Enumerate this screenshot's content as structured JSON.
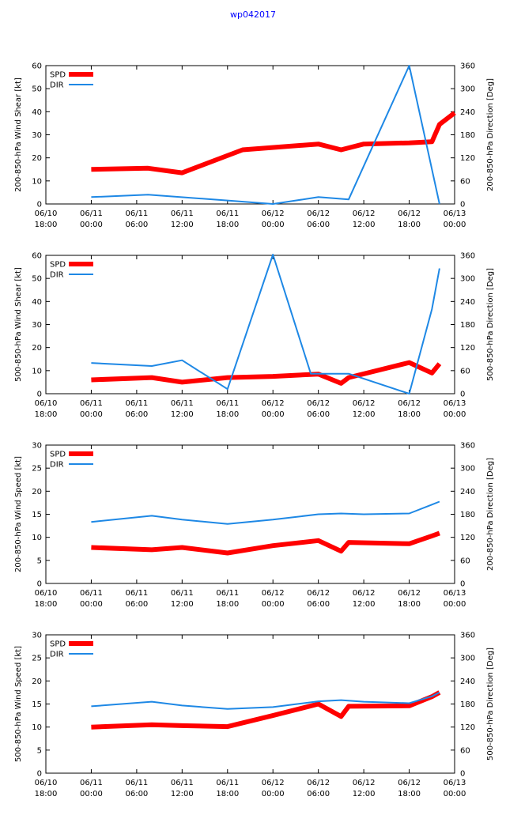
{
  "page_title": "wp042017",
  "colors": {
    "spd": "#ff0000",
    "dir": "#1e88e5",
    "title": "#0000ff"
  },
  "x_ticks": [
    {
      "date": "06/10",
      "time": "18:00"
    },
    {
      "date": "06/11",
      "time": "00:00"
    },
    {
      "date": "06/11",
      "time": "06:00"
    },
    {
      "date": "06/11",
      "time": "12:00"
    },
    {
      "date": "06/11",
      "time": "18:00"
    },
    {
      "date": "06/12",
      "time": "00:00"
    },
    {
      "date": "06/12",
      "time": "06:00"
    },
    {
      "date": "06/12",
      "time": "12:00"
    },
    {
      "date": "06/12",
      "time": "18:00"
    },
    {
      "date": "06/13",
      "time": "00:00"
    }
  ],
  "chart_data": [
    {
      "type": "line",
      "ylabel": "200-850-hPa Wind Shear [kt]",
      "y2label": "200-850-hPa Direction [Deg]",
      "xlim": [
        0,
        54
      ],
      "ylim": [
        0,
        60
      ],
      "y2lim": [
        0,
        360
      ],
      "yticks": [
        0,
        10,
        20,
        30,
        40,
        50,
        60
      ],
      "y2ticks": [
        0,
        60,
        120,
        180,
        240,
        300,
        360
      ],
      "legend": [
        "SPD",
        "DIR"
      ],
      "series": [
        {
          "name": "SPD",
          "axis": "left",
          "x": [
            6,
            13.5,
            18,
            26,
            36,
            39,
            42,
            48,
            51,
            52,
            54
          ],
          "y": [
            15,
            15.5,
            13.5,
            23.5,
            26,
            23.5,
            26,
            26.5,
            27,
            34.5,
            39.5
          ]
        },
        {
          "name": "DIR",
          "axis": "right",
          "x": [
            6,
            13.5,
            24,
            30,
            36,
            40,
            48,
            52
          ],
          "y": [
            18,
            24,
            9,
            0,
            18,
            12,
            360,
            0
          ]
        }
      ]
    },
    {
      "type": "line",
      "ylabel": "500-850-hPa Wind Shear [kt]",
      "y2label": "500-850-hPa Direction [Deg]",
      "xlim": [
        0,
        54
      ],
      "ylim": [
        0,
        60
      ],
      "y2lim": [
        0,
        360
      ],
      "yticks": [
        0,
        10,
        20,
        30,
        40,
        50,
        60
      ],
      "y2ticks": [
        0,
        60,
        120,
        180,
        240,
        300,
        360
      ],
      "legend": [
        "SPD",
        "DIR"
      ],
      "series": [
        {
          "name": "SPD",
          "axis": "left",
          "x": [
            6,
            14,
            18,
            24,
            30,
            36,
            39,
            40,
            48,
            51,
            52
          ],
          "y": [
            6,
            7,
            5,
            7,
            7.5,
            8.5,
            4.5,
            7,
            13.5,
            9,
            13
          ]
        },
        {
          "name": "DIR",
          "axis": "right",
          "x": [
            6,
            14,
            18,
            24,
            30,
            35,
            40,
            48,
            51,
            52
          ],
          "y": [
            80,
            72,
            87,
            12,
            362,
            52,
            52,
            0,
            220,
            326
          ]
        }
      ]
    },
    {
      "type": "line",
      "ylabel": "200-850-hPa Wind Speed [kt]",
      "y2label": "200-850-hPa Direction [Deg]",
      "xlim": [
        0,
        54
      ],
      "ylim": [
        0,
        30
      ],
      "y2lim": [
        0,
        360
      ],
      "yticks": [
        0,
        5,
        10,
        15,
        20,
        25,
        30
      ],
      "y2ticks": [
        0,
        60,
        120,
        180,
        240,
        300,
        360
      ],
      "legend": [
        "SPD",
        "DIR"
      ],
      "series": [
        {
          "name": "SPD",
          "axis": "left",
          "x": [
            6,
            14,
            18,
            24,
            30,
            36,
            39,
            40,
            48,
            51,
            52
          ],
          "y": [
            7.8,
            7.3,
            7.8,
            6.6,
            8.2,
            9.3,
            7,
            8.9,
            8.6,
            10.3,
            10.9
          ]
        },
        {
          "name": "DIR",
          "axis": "right",
          "x": [
            6,
            14,
            18,
            24,
            30,
            36,
            39,
            42,
            48,
            51,
            52
          ],
          "y": [
            160,
            176,
            166,
            155,
            166,
            180,
            182,
            180,
            182,
            205,
            213
          ]
        }
      ]
    },
    {
      "type": "line",
      "ylabel": "500-850-hPa Wind Speed [kt]",
      "y2label": "500-850-hPa Direction [Deg]",
      "xlim": [
        0,
        54
      ],
      "ylim": [
        0,
        30
      ],
      "y2lim": [
        0,
        360
      ],
      "yticks": [
        0,
        5,
        10,
        15,
        20,
        25,
        30
      ],
      "y2ticks": [
        0,
        60,
        120,
        180,
        240,
        300,
        360
      ],
      "legend": [
        "SPD",
        "DIR"
      ],
      "series": [
        {
          "name": "SPD",
          "axis": "left",
          "x": [
            6,
            14,
            18,
            24,
            30,
            36,
            39,
            40,
            48,
            51,
            52
          ],
          "y": [
            10,
            10.5,
            10.3,
            10.1,
            12.5,
            15,
            12.3,
            14.5,
            14.6,
            16.6,
            17.5
          ]
        },
        {
          "name": "DIR",
          "axis": "right",
          "x": [
            6,
            14,
            18,
            24,
            30,
            36,
            39,
            42,
            48,
            51,
            52
          ],
          "y": [
            174,
            186,
            176,
            167,
            172,
            187,
            190,
            186,
            182,
            200,
            210
          ]
        }
      ]
    }
  ]
}
